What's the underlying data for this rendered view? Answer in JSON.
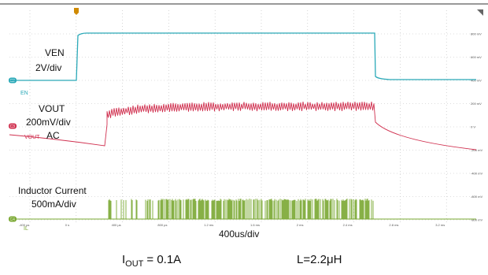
{
  "scope": {
    "time_labels": [
      "-400 µs",
      "0 s",
      "400 µs",
      "800 µs",
      "1.2 ms",
      "1.6 ms",
      "2 ms",
      "2.4 ms",
      "2.8 ms",
      "3.2 ms"
    ],
    "voltage_labels": [
      "800 mV",
      "600 mV",
      "400 mV",
      "200 mV",
      "0 V",
      "-200 mV",
      "-400 mV",
      "-600 mV",
      "-800 mV"
    ],
    "channels": [
      {
        "badge": "C2",
        "name": "EN",
        "label": "VEN",
        "scale": "2V/div"
      },
      {
        "badge": "C3",
        "name": "VOUT",
        "label": "VOUT",
        "scale": "200mV/div",
        "coupling": "AC"
      },
      {
        "badge": "C4",
        "name": "IL",
        "label": "Inductor Current",
        "scale": "500mA/div"
      }
    ],
    "timebase": "400us/div"
  },
  "caption": {
    "current_symbol": "I",
    "current_subscript": "OUT",
    "current_value": "= 0.1A",
    "inductance": "L=2.2μH"
  }
}
